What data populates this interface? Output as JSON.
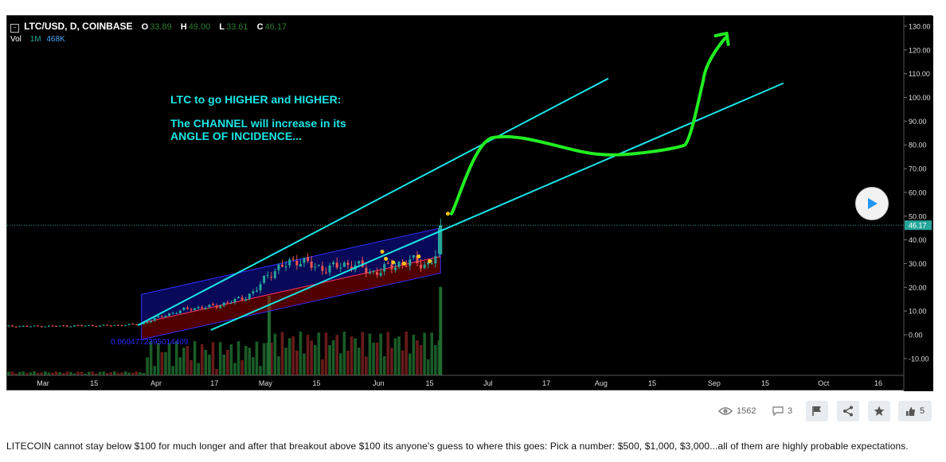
{
  "legend": {
    "symbol": "LTC/USD, D, COINBASE",
    "open_label": "O",
    "open": "33.89",
    "high_label": "H",
    "high": "49.00",
    "low_label": "L",
    "low": "33.61",
    "close_label": "C",
    "close": "46.17",
    "vol_label": "Vol",
    "vol_period": "1M",
    "vol_value": "468K"
  },
  "annotation": {
    "line1": "LTC to go HIGHER and HIGHER:",
    "line2": "The CHANNEL will increase in its",
    "line3": "ANGLE OF INCIDENCE..."
  },
  "fib_label": "0.0604772395014409",
  "price_tag": "46.17",
  "colors": {
    "channel": "#19e6e6",
    "arrow": "#22ee22",
    "up_candle": "#26a69a",
    "down_candle": "#ef5350",
    "regression_fill_blue": "#1a1aff",
    "regression_fill_red": "#b40000",
    "dot": "#f5c518"
  },
  "chart_data": {
    "type": "candlestick",
    "symbol": "LTC/USD",
    "interval": "D",
    "exchange": "COINBASE",
    "x_tick_labels": [
      "Mar",
      "15",
      "Apr",
      "17",
      "May",
      "15",
      "Jun",
      "15",
      "Jul",
      "17",
      "Aug",
      "15",
      "Sep",
      "15",
      "Oct",
      "16"
    ],
    "y_tick_labels": [
      "130.00",
      "120.00",
      "110.00",
      "100.00",
      "90.00",
      "80.00",
      "70.00",
      "60.00",
      "50.00",
      "40.00",
      "30.00",
      "20.00",
      "10.00",
      "0.00",
      "-10.00"
    ],
    "ylim": [
      -15,
      133
    ],
    "last_price": 46.17,
    "close_series": [
      {
        "date": "2017-03-01",
        "close": 3.6
      },
      {
        "date": "2017-03-10",
        "close": 3.8
      },
      {
        "date": "2017-03-20",
        "close": 3.9
      },
      {
        "date": "2017-03-28",
        "close": 4.5
      },
      {
        "date": "2017-04-01",
        "close": 7.0
      },
      {
        "date": "2017-04-05",
        "close": 9.0
      },
      {
        "date": "2017-04-10",
        "close": 11.0
      },
      {
        "date": "2017-04-17",
        "close": 12.0
      },
      {
        "date": "2017-04-24",
        "close": 15.0
      },
      {
        "date": "2017-04-28",
        "close": 18.0
      },
      {
        "date": "2017-05-02",
        "close": 26.0
      },
      {
        "date": "2017-05-06",
        "close": 29.0
      },
      {
        "date": "2017-05-10",
        "close": 32.0
      },
      {
        "date": "2017-05-15",
        "close": 28.0
      },
      {
        "date": "2017-05-20",
        "close": 28.5
      },
      {
        "date": "2017-05-25",
        "close": 30.0
      },
      {
        "date": "2017-05-30",
        "close": 26.0
      },
      {
        "date": "2017-06-03",
        "close": 28.0
      },
      {
        "date": "2017-06-07",
        "close": 30.0
      },
      {
        "date": "2017-06-11",
        "close": 31.0
      },
      {
        "date": "2017-06-14",
        "close": 29.0
      },
      {
        "date": "2017-06-17",
        "close": 33.9
      },
      {
        "date": "2017-06-18",
        "close": 46.17
      }
    ],
    "volume_peaks": [
      "2017-05-02",
      "2017-06-18"
    ],
    "upper_channel": [
      {
        "date": "2017-03-27",
        "value": 4
      },
      {
        "date": "2017-08-03",
        "value": 108
      }
    ],
    "lower_channel": [
      {
        "date": "2017-04-16",
        "value": 2
      },
      {
        "date": "2017-09-20",
        "value": 106
      }
    ],
    "projection_path": [
      {
        "date": "2017-06-21",
        "value": 51
      },
      {
        "date": "2017-07-02",
        "value": 83
      },
      {
        "date": "2017-08-01",
        "value": 76
      },
      {
        "date": "2017-08-24",
        "value": 80
      },
      {
        "date": "2017-08-29",
        "value": 107
      },
      {
        "date": "2017-09-04",
        "value": 125
      }
    ],
    "grid": false,
    "legend_position": "top-left"
  },
  "actions": {
    "views": "1562",
    "comments": "3",
    "likes": "5"
  },
  "description": "LITECOIN cannot stay below $100 for much longer and after that breakout above $100 its anyone's guess to where this goes: Pick a number: $500, $1,000, $3,000...all of them are highly probable expectations."
}
